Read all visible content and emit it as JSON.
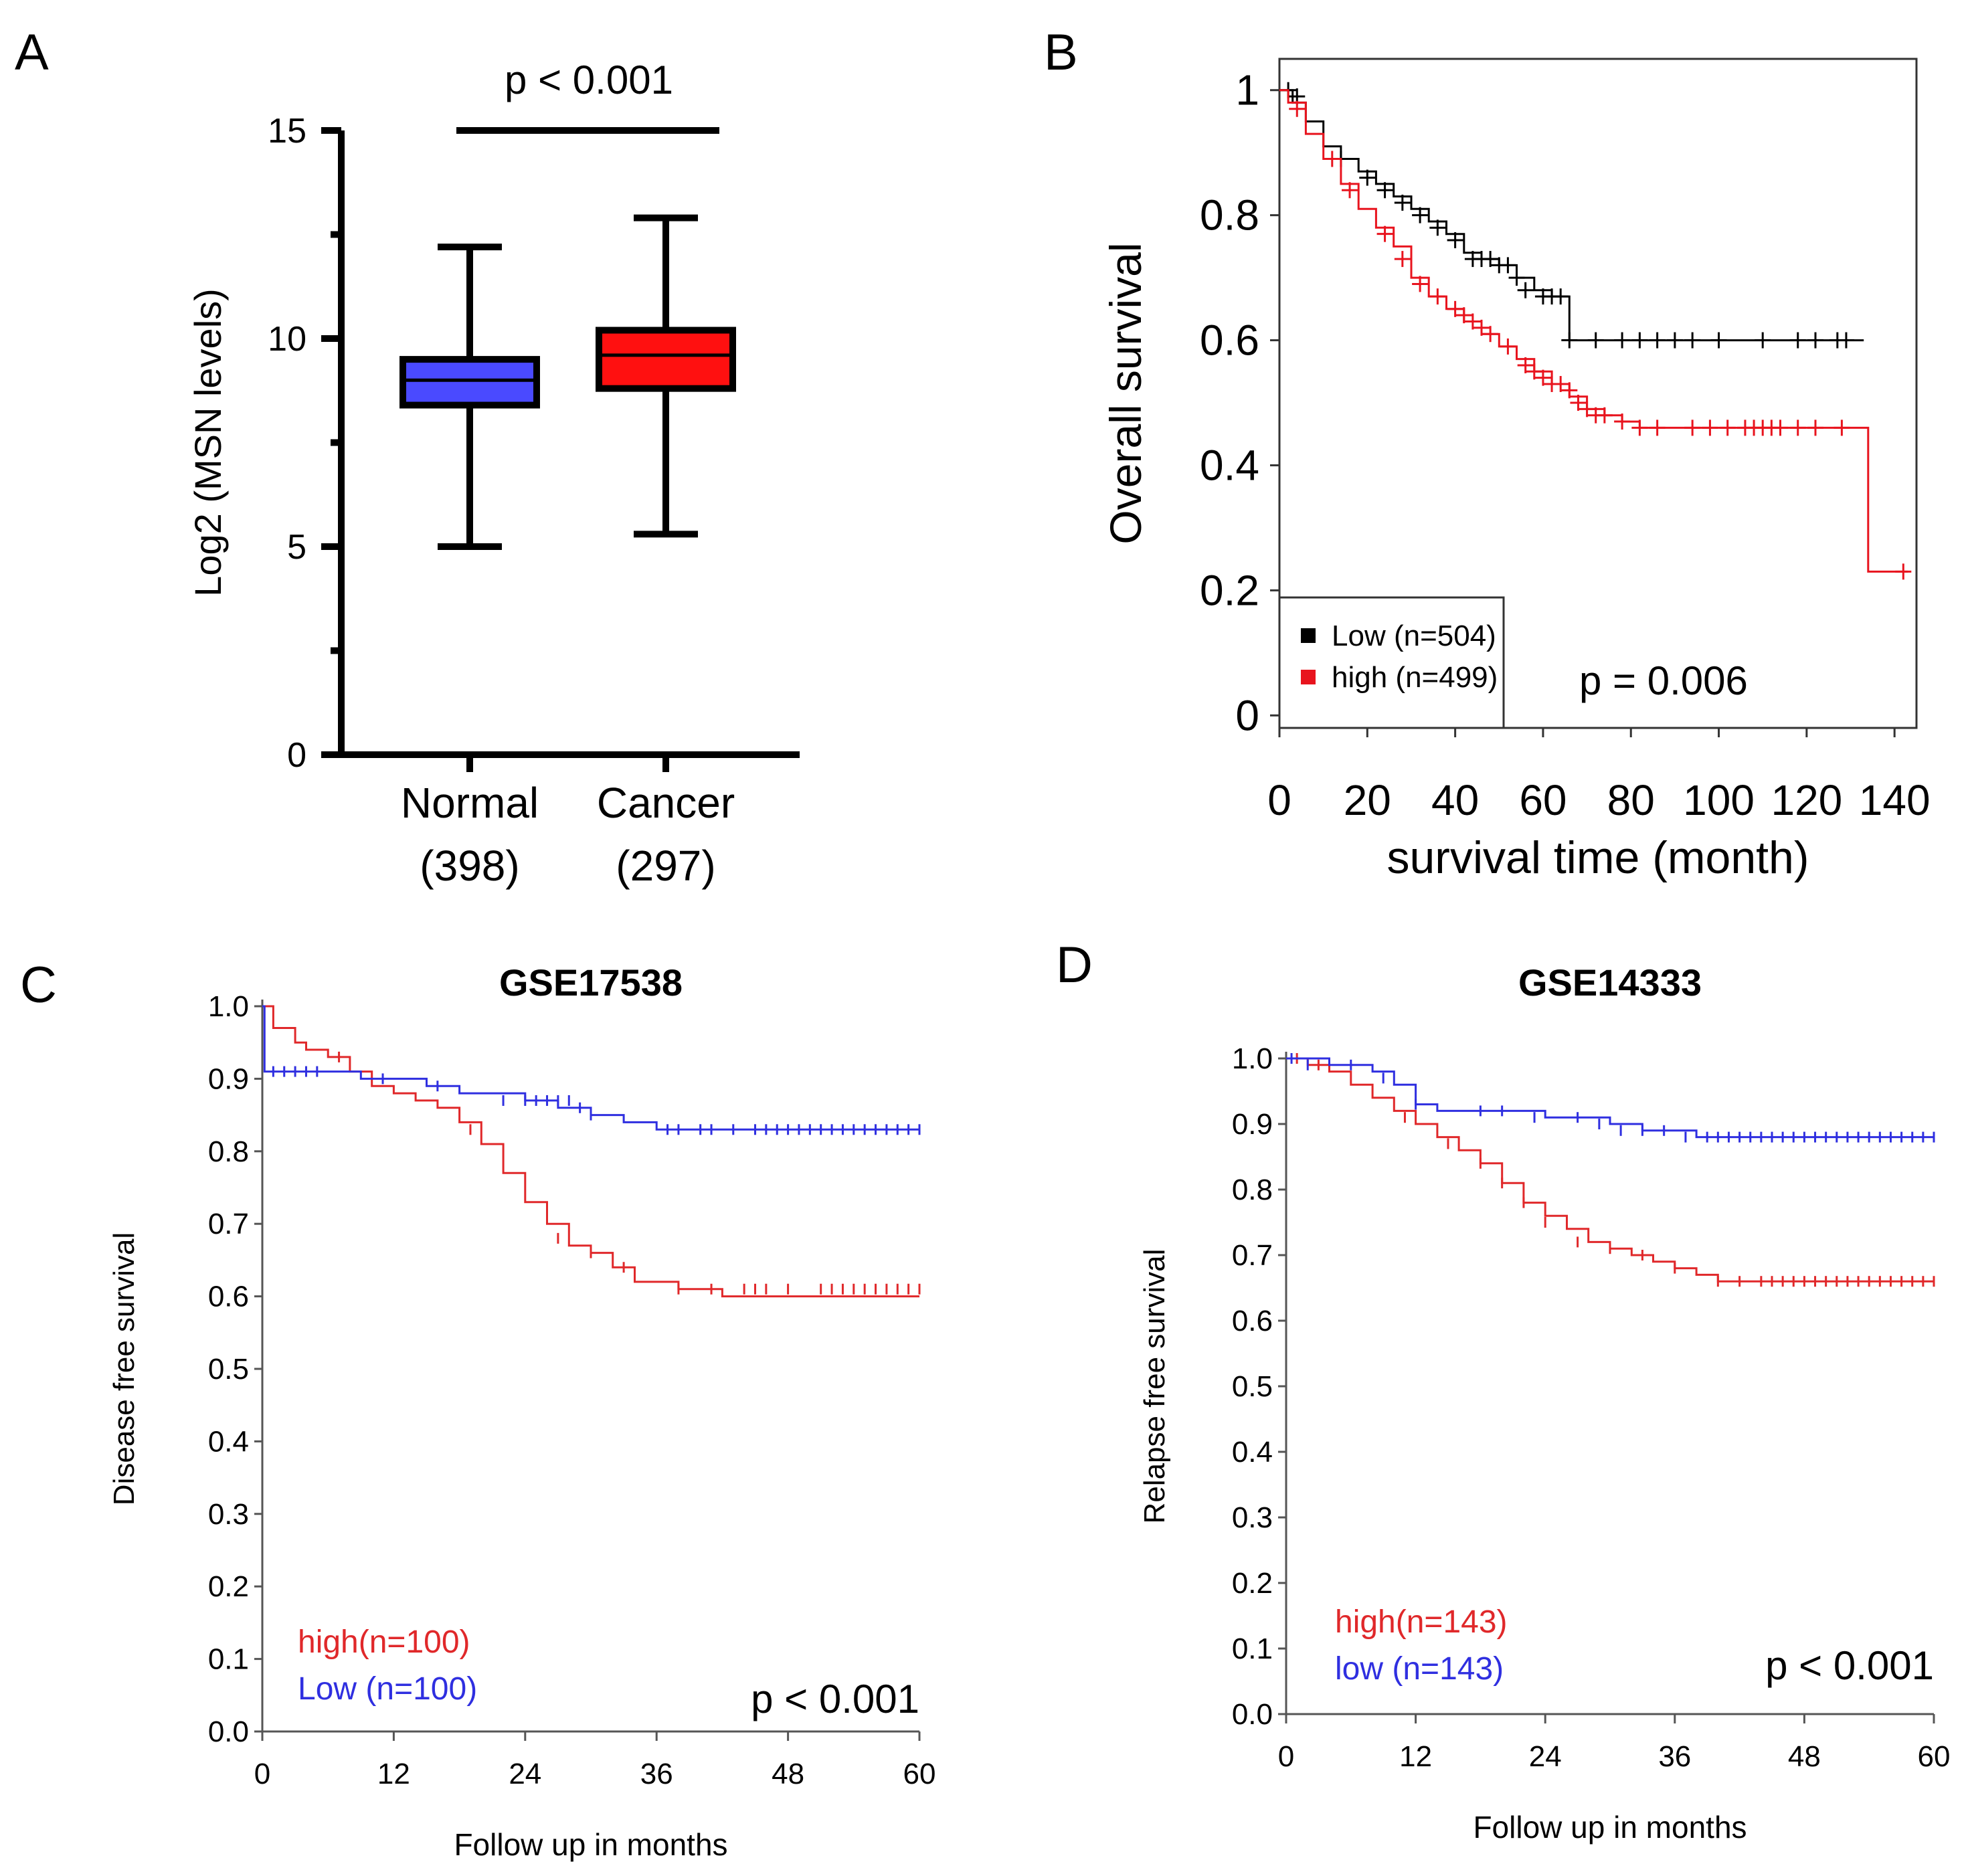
{
  "colors": {
    "normal_box": "#4a4aff",
    "cancer_box": "#ff1010",
    "low_black": "#000000",
    "high_red": "#e8141e",
    "km_red": "#e0282a",
    "km_blue": "#2f2fe0"
  },
  "chart_data": [
    {
      "panel": "A",
      "type": "box",
      "ylabel": "Log2 (MSN levels)",
      "ylim": [
        0,
        15
      ],
      "yticks": [
        "0",
        "5",
        "10",
        "15"
      ],
      "pvalue": "p < 0.001",
      "groups": [
        {
          "name": "Normal",
          "n_label": "(398)",
          "min": 5.0,
          "q1": 8.4,
          "median": 9.0,
          "q3": 9.5,
          "max": 12.2,
          "color_key": "normal_box"
        },
        {
          "name": "Cancer",
          "n_label": "(297)",
          "min": 5.3,
          "q1": 8.8,
          "median": 9.6,
          "q3": 10.2,
          "max": 12.9,
          "color_key": "cancer_box"
        }
      ]
    },
    {
      "panel": "B",
      "type": "line",
      "subtype": "kaplan-meier",
      "xlabel": "survival time (month)",
      "ylabel": "Overall survival",
      "xlim": [
        0,
        145
      ],
      "ylim": [
        -0.02,
        1.05
      ],
      "xticks": [
        "0",
        "20",
        "40",
        "60",
        "80",
        "100",
        "120",
        "140"
      ],
      "yticks": [
        "0",
        "0.2",
        "0.4",
        "0.6",
        "0.8",
        "1"
      ],
      "pvalue": "p = 0.006",
      "legend": [
        "Low (n=504)",
        "high (n=499)"
      ],
      "series": [
        {
          "name": "Low (n=504)",
          "color_key": "low_black",
          "x": [
            0,
            3,
            6,
            10,
            14,
            18,
            22,
            26,
            30,
            34,
            38,
            42,
            46,
            50,
            54,
            58,
            62,
            66,
            133
          ],
          "y": [
            1.0,
            0.98,
            0.95,
            0.91,
            0.89,
            0.87,
            0.85,
            0.83,
            0.81,
            0.79,
            0.77,
            0.74,
            0.73,
            0.72,
            0.7,
            0.68,
            0.67,
            0.6,
            0.6
          ],
          "censor_x": [
            2,
            4,
            14,
            20,
            24,
            28,
            32,
            36,
            40,
            44,
            46,
            48,
            50,
            52,
            54,
            56,
            60,
            62,
            64,
            66,
            72,
            78,
            82,
            86,
            90,
            94,
            100,
            110,
            118,
            122,
            127,
            129
          ],
          "censor_y": [
            1.0,
            0.99,
            0.89,
            0.86,
            0.84,
            0.82,
            0.8,
            0.78,
            0.76,
            0.73,
            0.73,
            0.73,
            0.72,
            0.72,
            0.7,
            0.68,
            0.67,
            0.67,
            0.67,
            0.6,
            0.6,
            0.6,
            0.6,
            0.6,
            0.6,
            0.6,
            0.6,
            0.6,
            0.6,
            0.6,
            0.6,
            0.6
          ]
        },
        {
          "name": "high (n=499)",
          "color_key": "high_red",
          "x": [
            0,
            2,
            6,
            10,
            14,
            18,
            22,
            26,
            30,
            34,
            38,
            42,
            46,
            50,
            54,
            58,
            62,
            66,
            70,
            74,
            78,
            82,
            86,
            134,
            134,
            143
          ],
          "y": [
            1.0,
            0.98,
            0.93,
            0.89,
            0.85,
            0.81,
            0.78,
            0.75,
            0.7,
            0.67,
            0.65,
            0.63,
            0.61,
            0.59,
            0.57,
            0.55,
            0.53,
            0.51,
            0.49,
            0.48,
            0.47,
            0.46,
            0.46,
            0.46,
            0.23,
            0.23
          ],
          "censor_x": [
            4,
            12,
            16,
            24,
            28,
            32,
            36,
            40,
            42,
            44,
            46,
            48,
            52,
            56,
            58,
            60,
            62,
            64,
            66,
            68,
            70,
            72,
            74,
            78,
            82,
            86,
            94,
            98,
            102,
            106,
            108,
            110,
            112,
            114,
            118,
            122,
            128,
            142
          ],
          "censor_y": [
            0.97,
            0.89,
            0.84,
            0.77,
            0.73,
            0.69,
            0.67,
            0.65,
            0.64,
            0.63,
            0.62,
            0.61,
            0.59,
            0.56,
            0.55,
            0.54,
            0.53,
            0.53,
            0.52,
            0.5,
            0.49,
            0.48,
            0.48,
            0.47,
            0.46,
            0.46,
            0.46,
            0.46,
            0.46,
            0.46,
            0.46,
            0.46,
            0.46,
            0.46,
            0.46,
            0.46,
            0.46,
            0.23
          ]
        }
      ]
    },
    {
      "panel": "C",
      "type": "line",
      "subtype": "kaplan-meier",
      "title": "GSE17538",
      "xlabel": "Follow up in months",
      "ylabel": "Disease free survival",
      "xlim": [
        0,
        60
      ],
      "ylim": [
        0,
        1.0
      ],
      "xticks": [
        "0",
        "12",
        "24",
        "36",
        "48",
        "60"
      ],
      "yticks": [
        "0.0",
        "0.1",
        "0.2",
        "0.3",
        "0.4",
        "0.5",
        "0.6",
        "0.7",
        "0.8",
        "0.9",
        "1.0"
      ],
      "pvalue": "p < 0.001",
      "legend": [
        "high(n=100)",
        "Low (n=100)"
      ],
      "series": [
        {
          "name": "high(n=100)",
          "color_key": "km_red",
          "x": [
            0,
            1,
            3,
            4,
            6,
            8,
            10,
            12,
            14,
            16,
            18,
            20,
            22,
            24,
            26,
            28,
            30,
            32,
            34,
            36,
            38,
            40,
            42,
            60
          ],
          "y": [
            1.0,
            0.97,
            0.95,
            0.94,
            0.93,
            0.91,
            0.89,
            0.88,
            0.87,
            0.86,
            0.84,
            0.81,
            0.77,
            0.73,
            0.7,
            0.67,
            0.66,
            0.64,
            0.62,
            0.62,
            0.61,
            0.61,
            0.6,
            0.6
          ],
          "censor_x": [
            7,
            19,
            27,
            30,
            33,
            38,
            41,
            44,
            45,
            46,
            48,
            51,
            52,
            53,
            54,
            55,
            56,
            57,
            58,
            59,
            60
          ],
          "censor_y": [
            0.93,
            0.83,
            0.68,
            0.66,
            0.64,
            0.61,
            0.61,
            0.61,
            0.61,
            0.61,
            0.61,
            0.61,
            0.61,
            0.61,
            0.61,
            0.61,
            0.61,
            0.61,
            0.61,
            0.61,
            0.61
          ]
        },
        {
          "name": "Low (n=100)",
          "color_key": "km_blue",
          "x": [
            0,
            0.2,
            3,
            6,
            9,
            12,
            15,
            18,
            21,
            24,
            27,
            30,
            33,
            36,
            60
          ],
          "y": [
            1.0,
            0.91,
            0.91,
            0.91,
            0.9,
            0.9,
            0.89,
            0.88,
            0.88,
            0.87,
            0.86,
            0.85,
            0.84,
            0.83,
            0.83
          ],
          "censor_x": [
            1,
            2,
            3,
            4,
            5,
            11,
            16,
            22,
            24,
            25,
            26,
            27,
            28,
            29,
            30,
            37,
            38,
            40,
            41,
            43,
            45,
            46,
            47,
            48,
            49,
            50,
            51,
            52,
            53,
            54,
            55,
            56,
            57,
            58,
            59,
            60
          ],
          "censor_y": [
            0.91,
            0.91,
            0.91,
            0.91,
            0.91,
            0.9,
            0.89,
            0.87,
            0.87,
            0.87,
            0.87,
            0.87,
            0.87,
            0.86,
            0.85,
            0.83,
            0.83,
            0.83,
            0.83,
            0.83,
            0.83,
            0.83,
            0.83,
            0.83,
            0.83,
            0.83,
            0.83,
            0.83,
            0.83,
            0.83,
            0.83,
            0.83,
            0.83,
            0.83,
            0.83,
            0.83
          ]
        }
      ]
    },
    {
      "panel": "D",
      "type": "line",
      "subtype": "kaplan-meier",
      "title": "GSE14333",
      "xlabel": "Follow up in months",
      "ylabel": "Relapse free survival",
      "xlim": [
        0,
        60
      ],
      "ylim": [
        0,
        1.0
      ],
      "xticks": [
        "0",
        "12",
        "24",
        "36",
        "48",
        "60"
      ],
      "yticks": [
        "0.0",
        "0.1",
        "0.2",
        "0.3",
        "0.4",
        "0.5",
        "0.6",
        "0.7",
        "0.8",
        "0.9",
        "1.0"
      ],
      "pvalue": "p < 0.001",
      "legend": [
        "high(n=143)",
        "low (n=143)"
      ],
      "series": [
        {
          "name": "high(n=143)",
          "color_key": "km_red",
          "x": [
            0,
            2,
            4,
            6,
            8,
            10,
            12,
            14,
            16,
            18,
            20,
            22,
            24,
            26,
            28,
            30,
            32,
            34,
            36,
            38,
            40,
            42,
            60
          ],
          "y": [
            1.0,
            0.99,
            0.98,
            0.96,
            0.94,
            0.92,
            0.9,
            0.88,
            0.86,
            0.84,
            0.81,
            0.78,
            0.76,
            0.74,
            0.72,
            0.71,
            0.7,
            0.69,
            0.68,
            0.67,
            0.66,
            0.66,
            0.66
          ],
          "censor_x": [
            1,
            3,
            11,
            15,
            18,
            20,
            22,
            24,
            27,
            30,
            33,
            36,
            40,
            42,
            44,
            45,
            46,
            47,
            48,
            49,
            50,
            51,
            52,
            53,
            54,
            55,
            56,
            57,
            58,
            59,
            60
          ],
          "censor_y": [
            1.0,
            0.99,
            0.91,
            0.87,
            0.84,
            0.81,
            0.78,
            0.75,
            0.72,
            0.71,
            0.7,
            0.68,
            0.66,
            0.66,
            0.66,
            0.66,
            0.66,
            0.66,
            0.66,
            0.66,
            0.66,
            0.66,
            0.66,
            0.66,
            0.66,
            0.66,
            0.66,
            0.66,
            0.66,
            0.66,
            0.66
          ]
        },
        {
          "name": "low (n=143)",
          "color_key": "km_blue",
          "x": [
            0,
            4,
            8,
            10,
            12,
            14,
            18,
            24,
            28,
            30,
            33,
            36,
            38,
            60
          ],
          "y": [
            1.0,
            0.99,
            0.98,
            0.96,
            0.93,
            0.92,
            0.92,
            0.91,
            0.91,
            0.9,
            0.89,
            0.89,
            0.88,
            0.88
          ],
          "censor_x": [
            0.5,
            2,
            6,
            9,
            12,
            18,
            20,
            23,
            27,
            29,
            31,
            33,
            35,
            37,
            39,
            40,
            41,
            42,
            43,
            44,
            45,
            46,
            47,
            48,
            49,
            50,
            51,
            52,
            53,
            54,
            55,
            56,
            57,
            58,
            59,
            60
          ],
          "censor_y": [
            1.0,
            0.99,
            0.99,
            0.97,
            0.93,
            0.92,
            0.92,
            0.91,
            0.91,
            0.9,
            0.89,
            0.89,
            0.89,
            0.88,
            0.88,
            0.88,
            0.88,
            0.88,
            0.88,
            0.88,
            0.88,
            0.88,
            0.88,
            0.88,
            0.88,
            0.88,
            0.88,
            0.88,
            0.88,
            0.88,
            0.88,
            0.88,
            0.88,
            0.88,
            0.88,
            0.88
          ]
        }
      ]
    }
  ]
}
